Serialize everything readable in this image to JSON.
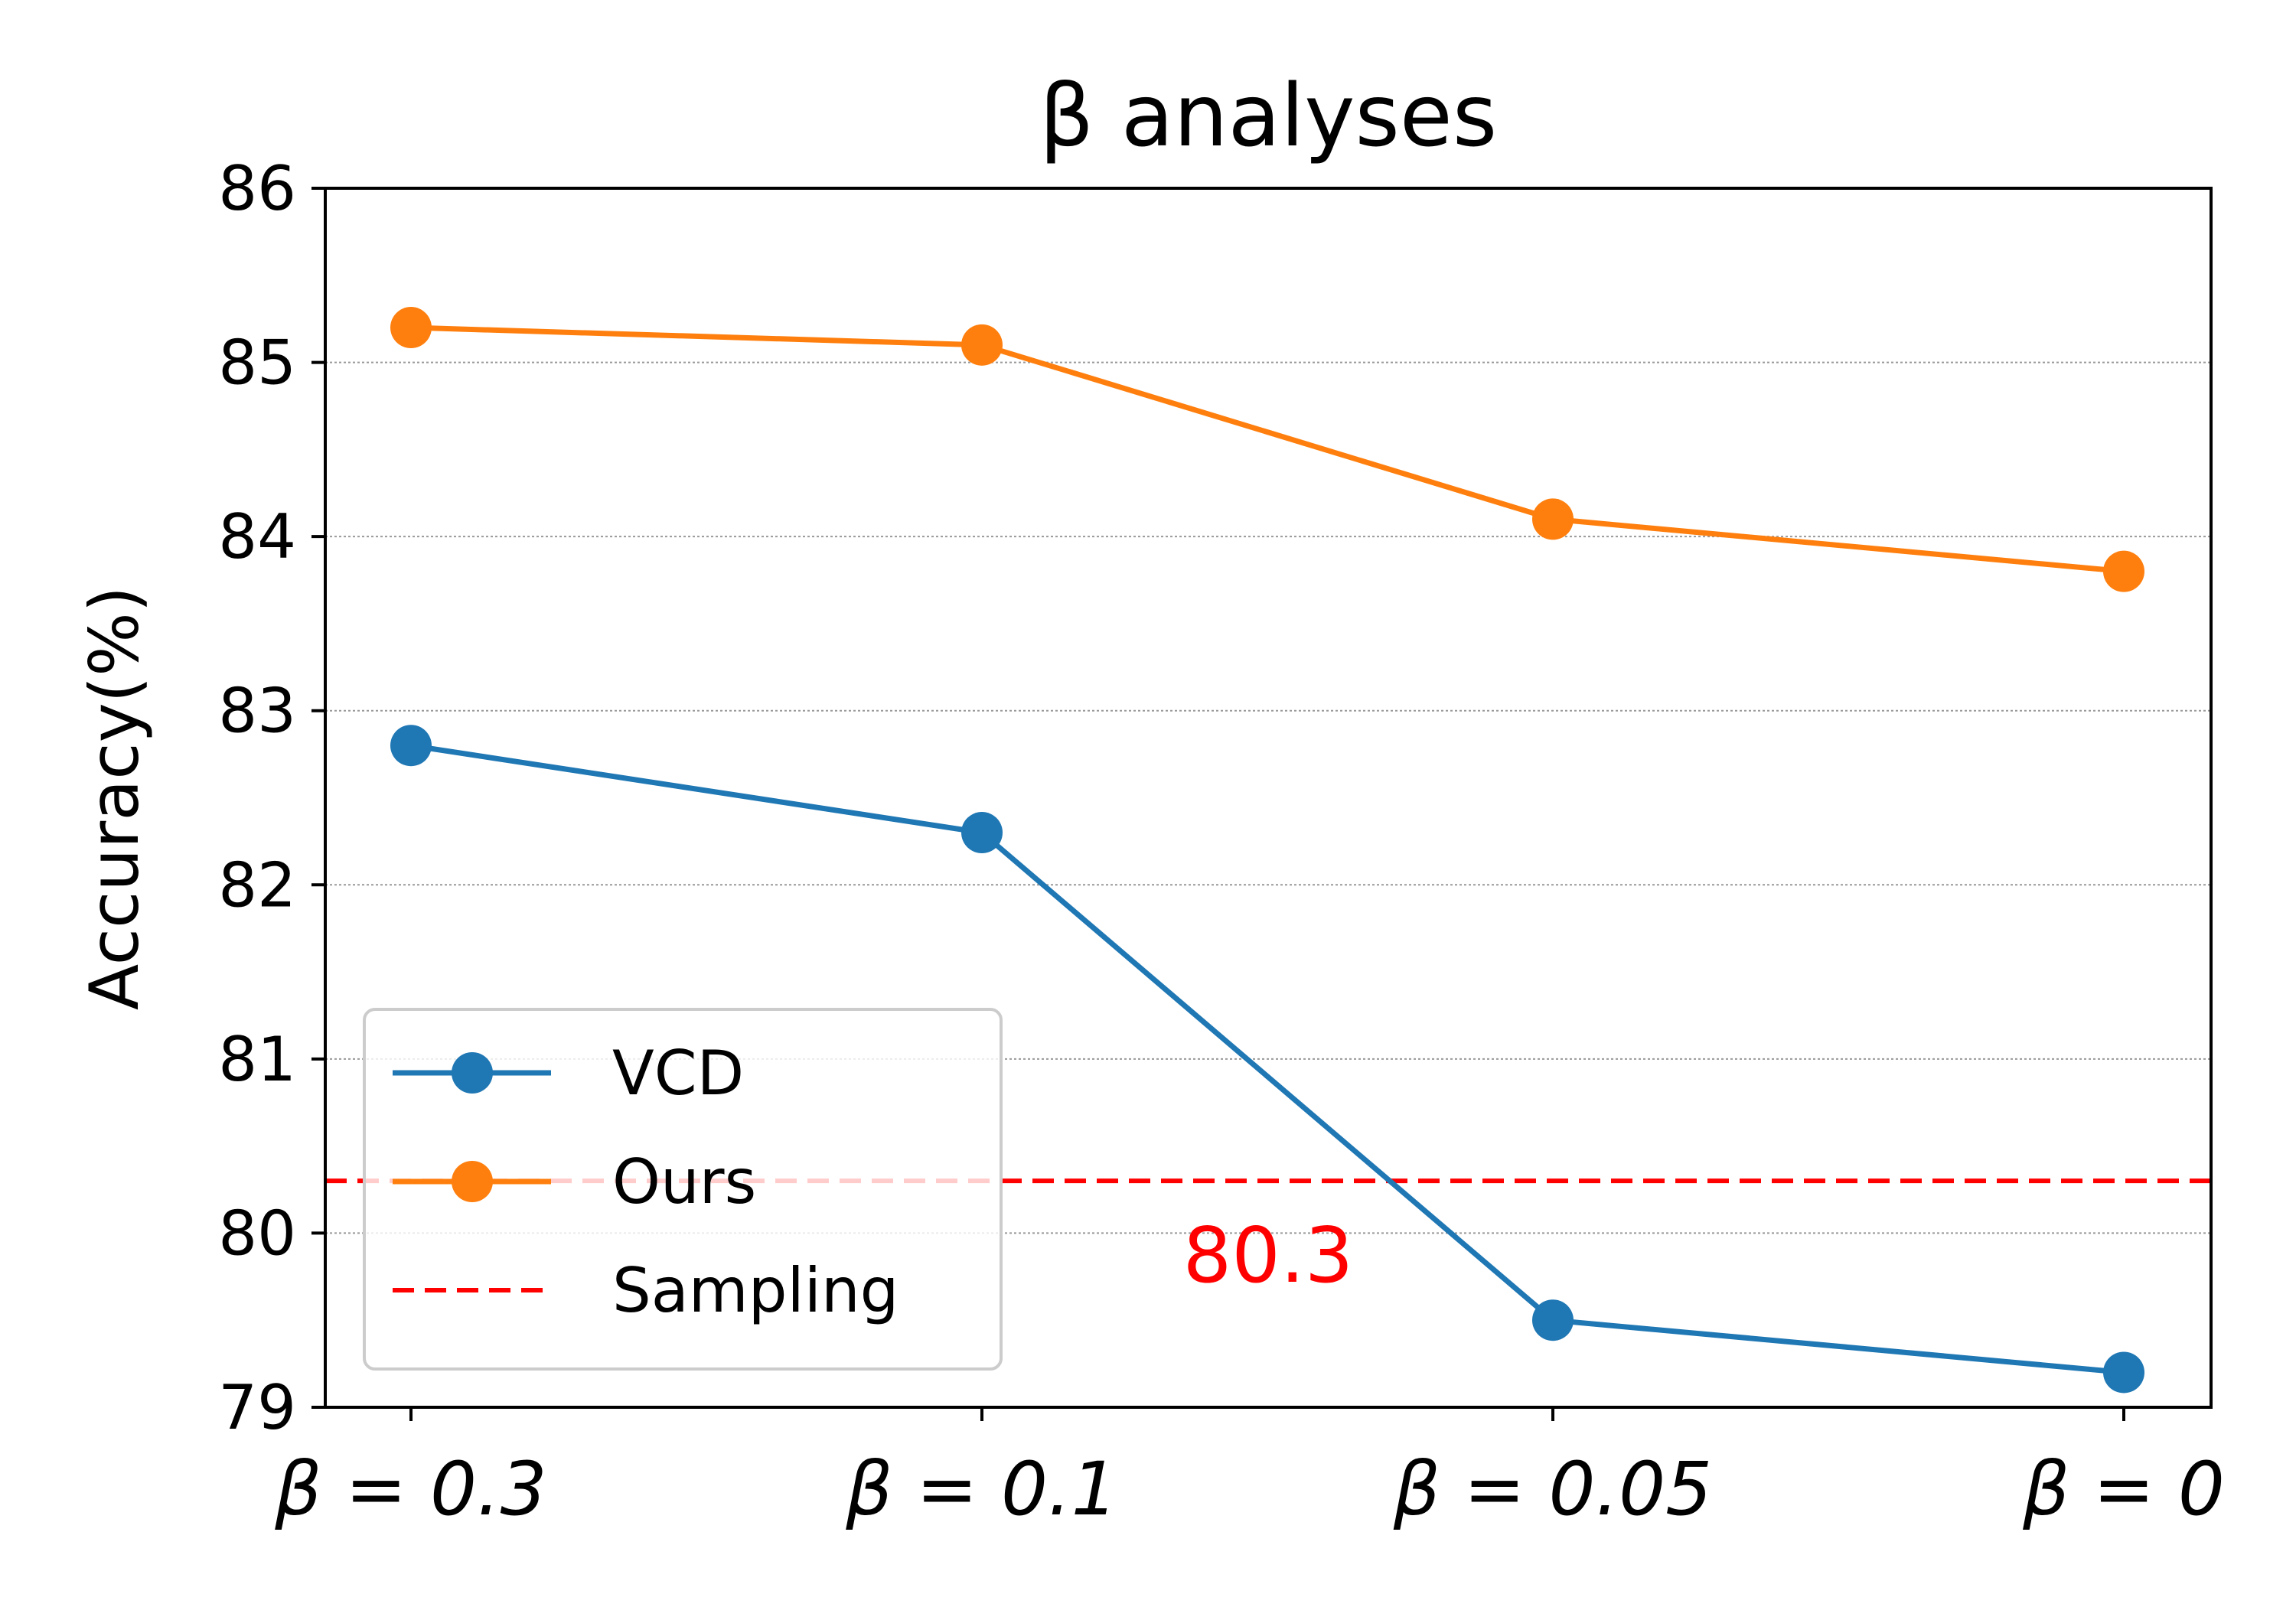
{
  "chart_data": {
    "type": "line",
    "title": "β analyses",
    "xlabel": "",
    "ylabel": "Accuracy(%)",
    "categories": [
      "β = 0.3",
      "β = 0.1",
      "β = 0.05",
      "β = 0"
    ],
    "ylim": [
      79,
      86
    ],
    "yticks": [
      79,
      80,
      81,
      82,
      83,
      84,
      85,
      86
    ],
    "grid": "horizontal dotted",
    "series": [
      {
        "name": "VCD",
        "color": "#1f77b4",
        "values": [
          82.8,
          82.3,
          79.5,
          79.2
        ]
      },
      {
        "name": "Ours",
        "color": "#ff7f0e",
        "values": [
          85.2,
          85.1,
          84.1,
          83.8
        ]
      }
    ],
    "reference_line": {
      "name": "Sampling",
      "value": 80.3,
      "label": "80.3",
      "color": "#ff0000",
      "style": "dashed"
    },
    "legend_position": "lower-left"
  }
}
